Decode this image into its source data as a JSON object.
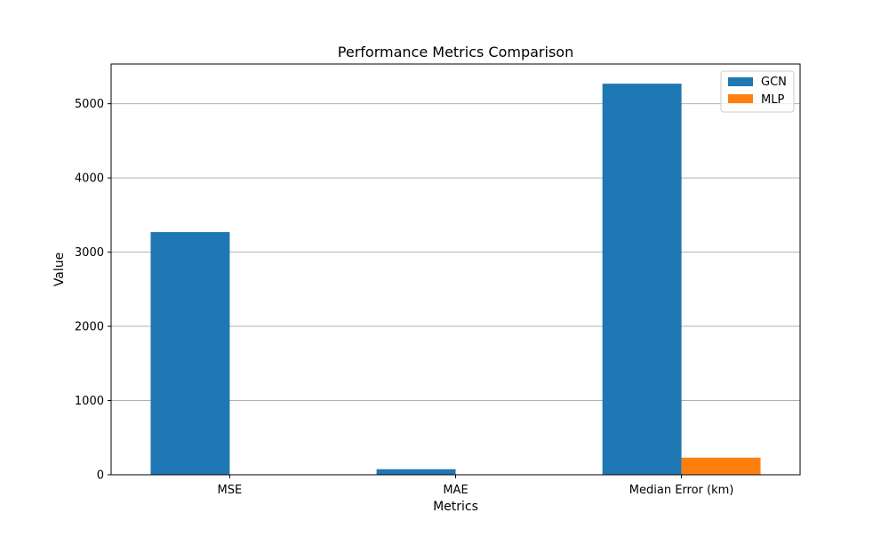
{
  "chart_data": {
    "type": "bar",
    "title": "Performance Metrics Comparison",
    "xlabel": "Metrics",
    "ylabel": "Value",
    "categories": [
      "MSE",
      "MAE",
      "Median Error (km)"
    ],
    "series": [
      {
        "name": "GCN",
        "values": [
          3270,
          75,
          5270
        ],
        "color": "#1f77b4"
      },
      {
        "name": "MLP",
        "values": [
          0.06,
          0.2,
          230
        ],
        "color": "#ff7f0e"
      }
    ],
    "ylim": [
      0,
      5535
    ],
    "yticks": [
      0,
      1000,
      2000,
      3000,
      4000,
      5000
    ],
    "ytick_labels": [
      "0",
      "1000",
      "2000",
      "3000",
      "4000",
      "5000"
    ],
    "grid": "y",
    "legend_position": "top-right"
  }
}
